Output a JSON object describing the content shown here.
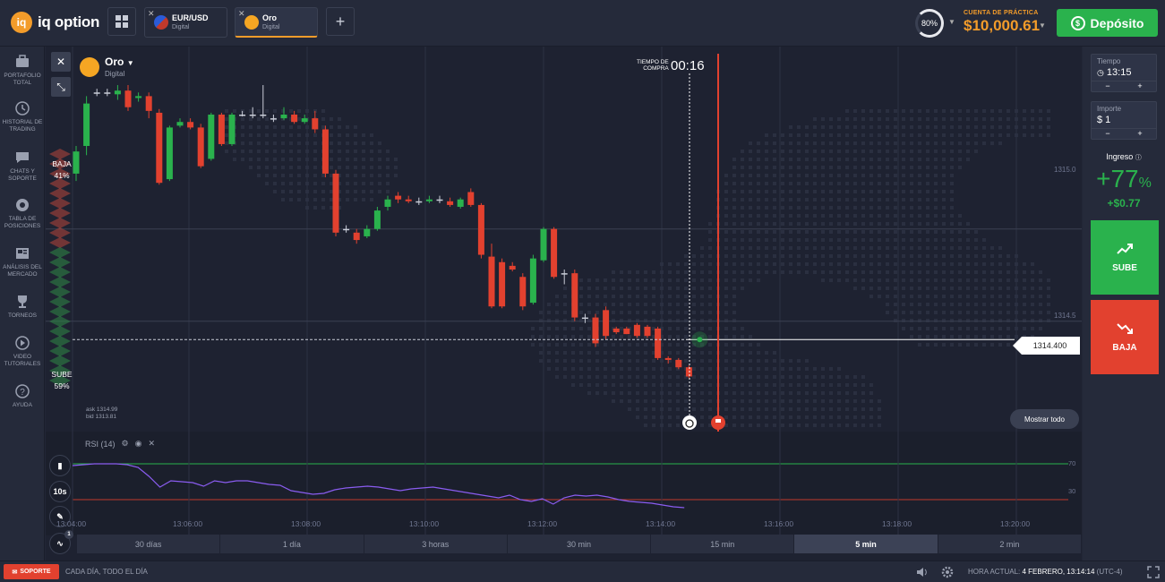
{
  "brand": {
    "name": "iq option"
  },
  "tabs": [
    {
      "name": "EUR/USD",
      "type": "Digital",
      "active": false
    },
    {
      "name": "Oro",
      "type": "Digital",
      "active": true
    }
  ],
  "header": {
    "profit_pct": "80%",
    "account_label": "CUENTA DE PRÁCTICA",
    "balance": "$10,000.61",
    "deposit_label": "Depósito"
  },
  "sidebar": {
    "items": [
      {
        "label": "PORTAFOLIO TOTAL",
        "icon": "briefcase-icon"
      },
      {
        "label": "HISTORIAL DE TRADING",
        "icon": "history-icon"
      },
      {
        "label": "CHATS Y SOPORTE",
        "icon": "chat-icon"
      },
      {
        "label": "TABLA DE POSICIONES",
        "icon": "leaderboard-icon"
      },
      {
        "label": "ANÁLISIS DEL MERCADO",
        "icon": "news-icon"
      },
      {
        "label": "TORNEOS",
        "icon": "trophy-icon"
      },
      {
        "label": "VIDEO TUTORIALES",
        "icon": "play-icon"
      },
      {
        "label": "AYUDA",
        "icon": "help-icon"
      }
    ]
  },
  "chart": {
    "asset_name": "Oro",
    "asset_type": "Digital",
    "timer_label_1": "TIEMPO DE",
    "timer_label_2": "COMPRA",
    "timer": "00:16",
    "sentiment_down_label": "BAJA",
    "sentiment_down_pct": "41%",
    "sentiment_up_label": "SUBE",
    "sentiment_up_pct": "59%",
    "current_price": "1314.400",
    "show_all": "Mostrar todo",
    "ask": "ask 1314.99",
    "bid": "bid 1313.81",
    "rsi_label": "RSI (14)",
    "interval_button": "10s",
    "indicator_badge": "1",
    "price_levels": [
      "1315.0",
      "1314.5"
    ],
    "rsi_levels": [
      "70",
      "30"
    ],
    "time_labels": [
      "13:04:00",
      "13:06:00",
      "13:08:00",
      "13:10:00",
      "13:12:00",
      "13:14:00",
      "13:16:00",
      "13:18:00",
      "13:20:00"
    ]
  },
  "timeframes": [
    {
      "label": "30 días",
      "active": false
    },
    {
      "label": "1 día",
      "active": false
    },
    {
      "label": "3 horas",
      "active": false
    },
    {
      "label": "30 min",
      "active": false
    },
    {
      "label": "15 min",
      "active": false
    },
    {
      "label": "5 min",
      "active": true
    },
    {
      "label": "2 min",
      "active": false
    }
  ],
  "right_panel": {
    "time_label": "Tiempo",
    "time_value": "13:15",
    "amount_label": "Importe",
    "amount_value": "$  1",
    "minus": "−",
    "plus": "+",
    "income_label": "Ingreso",
    "income_pct_sign": "+",
    "income_pct": "77",
    "income_pct_unit": "%",
    "income_amount": "+$0.77",
    "up_label": "SUBE",
    "down_label": "BAJA"
  },
  "footer": {
    "support_label": "SOPORTE",
    "promo": "CADA DÍA, TODO EL DÍA",
    "clock_label": "HORA ACTUAL:",
    "clock_value": "4 FEBRERO, 13:14:14",
    "timezone": "(UTC-4)"
  },
  "colors": {
    "up": "#2ab24d",
    "down": "#e2412f",
    "accent": "#f39c2a",
    "rsi_line": "#8a5cf0"
  },
  "chart_data": {
    "type": "candlestick",
    "candles": [
      {
        "o": 1315.3,
        "c": 1315.42,
        "h": 1315.45,
        "l": 1315.26
      },
      {
        "o": 1315.45,
        "c": 1315.68,
        "h": 1315.72,
        "l": 1315.4
      },
      {
        "o": 1315.74,
        "c": 1315.74,
        "h": 1315.76,
        "l": 1315.72
      },
      {
        "o": 1315.74,
        "c": 1315.74,
        "h": 1315.76,
        "l": 1315.72
      },
      {
        "o": 1315.73,
        "c": 1315.75,
        "h": 1315.78,
        "l": 1315.7
      },
      {
        "o": 1315.75,
        "c": 1315.66,
        "h": 1315.78,
        "l": 1315.64
      },
      {
        "o": 1315.71,
        "c": 1315.72,
        "h": 1315.74,
        "l": 1315.69
      },
      {
        "o": 1315.72,
        "c": 1315.64,
        "h": 1315.74,
        "l": 1315.6
      },
      {
        "o": 1315.63,
        "c": 1315.25,
        "h": 1315.65,
        "l": 1315.24
      },
      {
        "o": 1315.27,
        "c": 1315.55,
        "h": 1315.56,
        "l": 1315.26
      },
      {
        "o": 1315.56,
        "c": 1315.58,
        "h": 1315.6,
        "l": 1315.55
      },
      {
        "o": 1315.58,
        "c": 1315.55,
        "h": 1315.6,
        "l": 1315.54
      },
      {
        "o": 1315.55,
        "c": 1315.34,
        "h": 1315.57,
        "l": 1315.33
      },
      {
        "o": 1315.38,
        "c": 1315.62,
        "h": 1315.63,
        "l": 1315.37
      },
      {
        "o": 1315.62,
        "c": 1315.46,
        "h": 1315.63,
        "l": 1315.45
      },
      {
        "o": 1315.46,
        "c": 1315.62,
        "h": 1315.63,
        "l": 1315.45
      },
      {
        "o": 1315.62,
        "c": 1315.62,
        "h": 1315.64,
        "l": 1315.61
      },
      {
        "o": 1315.62,
        "c": 1315.62,
        "h": 1315.66,
        "l": 1315.6
      },
      {
        "o": 1315.62,
        "c": 1315.62,
        "h": 1315.78,
        "l": 1315.6
      },
      {
        "o": 1315.6,
        "c": 1315.6,
        "h": 1315.62,
        "l": 1315.58
      },
      {
        "o": 1315.6,
        "c": 1315.62,
        "h": 1315.66,
        "l": 1315.59
      },
      {
        "o": 1315.62,
        "c": 1315.58,
        "h": 1315.64,
        "l": 1315.57
      },
      {
        "o": 1315.58,
        "c": 1315.6,
        "h": 1315.62,
        "l": 1315.57
      },
      {
        "o": 1315.6,
        "c": 1315.54,
        "h": 1315.64,
        "l": 1315.52
      },
      {
        "o": 1315.54,
        "c": 1315.3,
        "h": 1315.56,
        "l": 1315.28
      },
      {
        "o": 1315.3,
        "c": 1314.98,
        "h": 1315.32,
        "l": 1314.96
      },
      {
        "o": 1315.0,
        "c": 1315.0,
        "h": 1315.02,
        "l": 1314.98
      },
      {
        "o": 1314.98,
        "c": 1314.94,
        "h": 1315.0,
        "l": 1314.92
      },
      {
        "o": 1314.96,
        "c": 1315.0,
        "h": 1315.02,
        "l": 1314.95
      },
      {
        "o": 1315.0,
        "c": 1315.1,
        "h": 1315.12,
        "l": 1314.99
      },
      {
        "o": 1315.12,
        "c": 1315.16,
        "h": 1315.18,
        "l": 1315.1
      },
      {
        "o": 1315.18,
        "c": 1315.16,
        "h": 1315.2,
        "l": 1315.14
      },
      {
        "o": 1315.16,
        "c": 1315.15,
        "h": 1315.18,
        "l": 1315.14
      },
      {
        "o": 1315.15,
        "c": 1315.15,
        "h": 1315.17,
        "l": 1315.13
      },
      {
        "o": 1315.15,
        "c": 1315.16,
        "h": 1315.18,
        "l": 1315.14
      },
      {
        "o": 1315.16,
        "c": 1315.16,
        "h": 1315.18,
        "l": 1315.14
      },
      {
        "o": 1315.15,
        "c": 1315.13,
        "h": 1315.17,
        "l": 1315.12
      },
      {
        "o": 1315.12,
        "c": 1315.16,
        "h": 1315.17,
        "l": 1315.11
      },
      {
        "o": 1315.2,
        "c": 1315.13,
        "h": 1315.22,
        "l": 1315.12
      },
      {
        "o": 1315.13,
        "c": 1314.86,
        "h": 1315.14,
        "l": 1314.84
      },
      {
        "o": 1314.85,
        "c": 1314.58,
        "h": 1314.92,
        "l": 1314.57
      },
      {
        "o": 1314.82,
        "c": 1314.58,
        "h": 1314.84,
        "l": 1314.57
      },
      {
        "o": 1314.8,
        "c": 1314.78,
        "h": 1314.82,
        "l": 1314.77
      },
      {
        "o": 1314.74,
        "c": 1314.58,
        "h": 1314.76,
        "l": 1314.56
      },
      {
        "o": 1314.6,
        "c": 1314.84,
        "h": 1314.86,
        "l": 1314.59
      },
      {
        "o": 1314.83,
        "c": 1315.0,
        "h": 1315.01,
        "l": 1314.82
      },
      {
        "o": 1315.0,
        "c": 1314.74,
        "h": 1315.01,
        "l": 1314.73
      },
      {
        "o": 1314.76,
        "c": 1314.76,
        "h": 1314.78,
        "l": 1314.7
      },
      {
        "o": 1314.76,
        "c": 1314.52,
        "h": 1314.78,
        "l": 1314.5
      },
      {
        "o": 1314.52,
        "c": 1314.52,
        "h": 1314.54,
        "l": 1314.49
      },
      {
        "o": 1314.52,
        "c": 1314.38,
        "h": 1314.54,
        "l": 1314.36
      },
      {
        "o": 1314.56,
        "c": 1314.42,
        "h": 1314.58,
        "l": 1314.4
      },
      {
        "o": 1314.46,
        "c": 1314.44,
        "h": 1314.47,
        "l": 1314.43
      },
      {
        "o": 1314.46,
        "c": 1314.43,
        "h": 1314.47,
        "l": 1314.43
      },
      {
        "o": 1314.48,
        "c": 1314.42,
        "h": 1314.49,
        "l": 1314.41
      },
      {
        "o": 1314.47,
        "c": 1314.42,
        "h": 1314.48,
        "l": 1314.41
      },
      {
        "o": 1314.46,
        "c": 1314.3,
        "h": 1314.47,
        "l": 1314.29
      },
      {
        "o": 1314.3,
        "c": 1314.29,
        "h": 1314.31,
        "l": 1314.27
      },
      {
        "o": 1314.29,
        "c": 1314.25,
        "h": 1314.3,
        "l": 1314.24
      },
      {
        "o": 1314.25,
        "c": 1314.2,
        "h": 1314.26,
        "l": 1314.19
      }
    ],
    "current": 1314.4,
    "ylim": [
      1313.95,
      1315.95
    ],
    "rsi": [
      68,
      69,
      70,
      70,
      70,
      69,
      66,
      56,
      44,
      51,
      50,
      49,
      45,
      51,
      49,
      51,
      51,
      49,
      47,
      46,
      40,
      38,
      36,
      37,
      41,
      43,
      44,
      45,
      44,
      42,
      40,
      42,
      43,
      44,
      42,
      40,
      38,
      36,
      34,
      32,
      35,
      30,
      28,
      31,
      25,
      32,
      35,
      34,
      35,
      33,
      30,
      28,
      27,
      26,
      24,
      22,
      21
    ]
  }
}
